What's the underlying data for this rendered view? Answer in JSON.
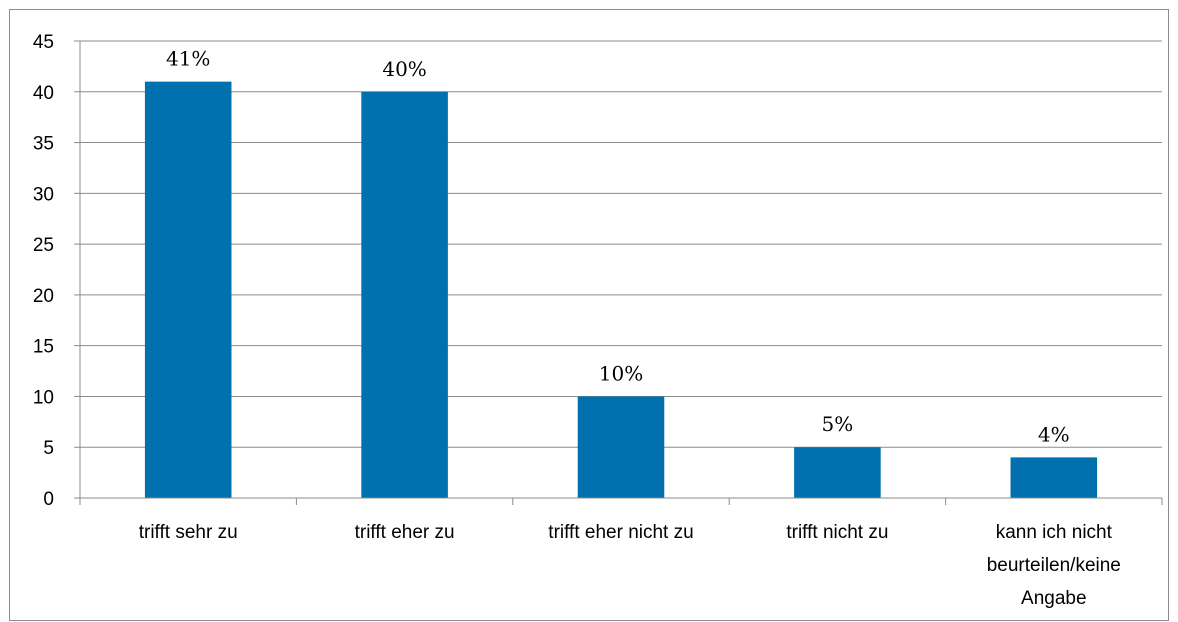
{
  "chart_data": {
    "type": "bar",
    "categories": [
      "trifft sehr zu",
      "trifft eher zu",
      "trifft eher nicht zu",
      "trifft nicht zu",
      "kann ich nicht beurteilen/keine Angabe"
    ],
    "category_lines": [
      [
        "trifft sehr zu"
      ],
      [
        "trifft eher zu"
      ],
      [
        "trifft eher nicht zu"
      ],
      [
        "trifft nicht zu"
      ],
      [
        "kann ich nicht",
        "beurteilen/keine",
        "Angabe"
      ]
    ],
    "values": [
      41,
      40,
      10,
      5,
      4
    ],
    "data_labels": [
      "41%",
      "40%",
      "10%",
      "5%",
      "4%"
    ],
    "title": "",
    "xlabel": "",
    "ylabel": "",
    "ylim": [
      0,
      45
    ],
    "yticks": [
      0,
      5,
      10,
      15,
      20,
      25,
      30,
      35,
      40,
      45
    ],
    "grid": true,
    "legend": "none",
    "colors": {
      "bar": "#0070ae",
      "grid": "#8c8c8c",
      "axis": "#8c8c8c"
    }
  }
}
